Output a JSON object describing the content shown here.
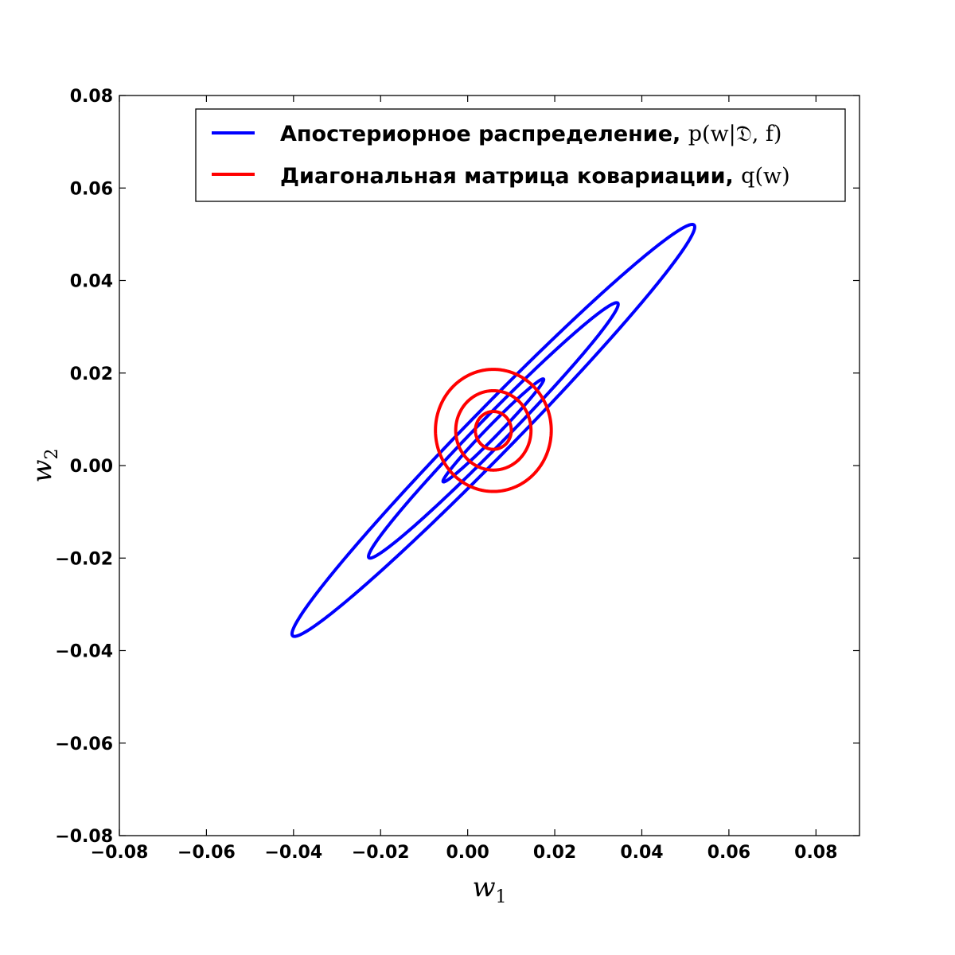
{
  "chart_data": {
    "type": "line",
    "title": "",
    "xlabel": "w",
    "xlabel_sub": "1",
    "ylabel": "w",
    "ylabel_sub": "2",
    "xlim": [
      -0.08,
      0.09
    ],
    "ylim": [
      -0.08,
      0.08
    ],
    "xticks": [
      -0.08,
      -0.06,
      -0.04,
      -0.02,
      0.0,
      0.02,
      0.04,
      0.06,
      0.08
    ],
    "xtick_labels": [
      "−0.08",
      "−0.06",
      "−0.04",
      "−0.02",
      "0.00",
      "0.02",
      "0.04",
      "0.06",
      "0.08"
    ],
    "yticks": [
      -0.08,
      -0.06,
      -0.04,
      -0.02,
      0.0,
      0.02,
      0.04,
      0.06,
      0.08
    ],
    "ytick_labels": [
      "−0.08",
      "−0.06",
      "−0.04",
      "−0.02",
      "0.00",
      "0.02",
      "0.04",
      "0.06",
      "0.08"
    ],
    "grid": false,
    "legend_position": "top-right",
    "series": [
      {
        "name": "Апостериорное распределение,",
        "name_math": "p(w|𝔇, f)",
        "color": "#0000ff",
        "contour": "ellipse",
        "center": [
          0.0059,
          0.0076
        ],
        "semi_axes": [
          0.064,
          0.0051
        ],
        "angle_deg": 43.9,
        "levels": [
          1.0,
          0.62,
          0.25
        ]
      },
      {
        "name": "Диагональная матрица ковариации,",
        "name_math": "q(w)",
        "color": "#ff0000",
        "contour": "ellipse",
        "center": [
          0.0059,
          0.0076
        ],
        "semi_axes": [
          0.0133,
          0.0132
        ],
        "angle_deg": 0,
        "levels": [
          1.0,
          0.65,
          0.31
        ]
      }
    ]
  }
}
